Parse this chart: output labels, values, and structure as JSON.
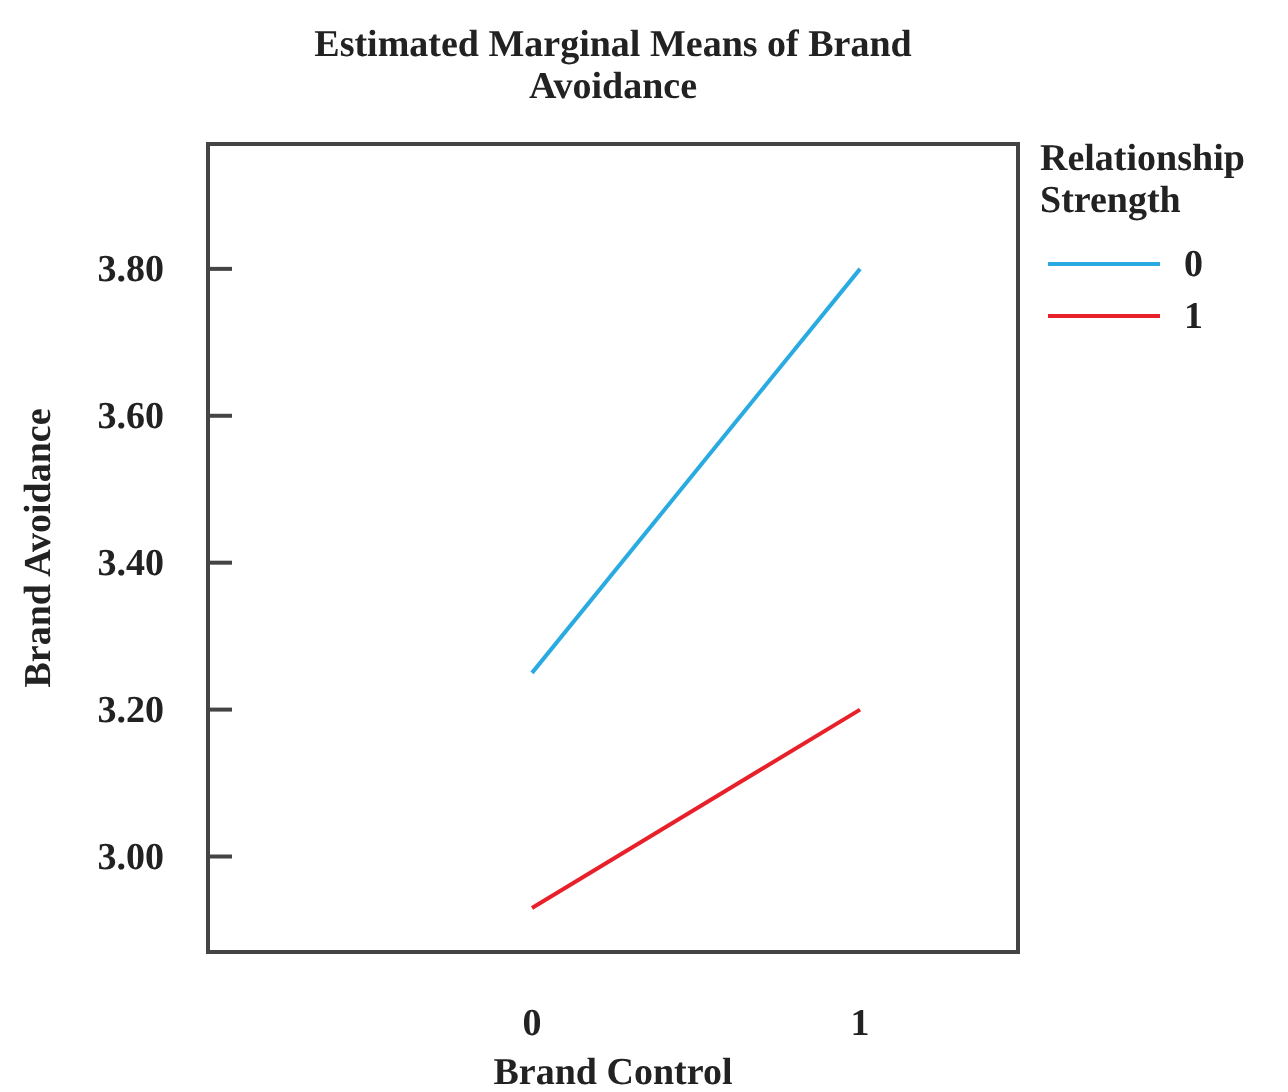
{
  "chart_data": {
    "type": "line",
    "title": "Estimated Marginal Means of Brand Avoidance",
    "xlabel": "Brand Control",
    "ylabel": "Brand Avoidance",
    "legend_title": "Relationship Strength",
    "categories": [
      "0",
      "1"
    ],
    "series": [
      {
        "name": "0",
        "color": "#29abe2",
        "values": [
          3.25,
          3.8
        ]
      },
      {
        "name": "1",
        "color": "#e8202a",
        "values": [
          2.93,
          3.2
        ]
      }
    ],
    "ylim": [
      2.87,
      3.97
    ],
    "yticks": [
      {
        "value": 3,
        "label": "3.00"
      },
      {
        "value": 3.2,
        "label": "3.20"
      },
      {
        "value": 3.4,
        "label": "3.40"
      },
      {
        "value": 3.6,
        "label": "3.60"
      },
      {
        "value": 3.8,
        "label": "3.80"
      }
    ],
    "grid": false,
    "legend": "right",
    "marker": "none",
    "line_style": "solid"
  }
}
